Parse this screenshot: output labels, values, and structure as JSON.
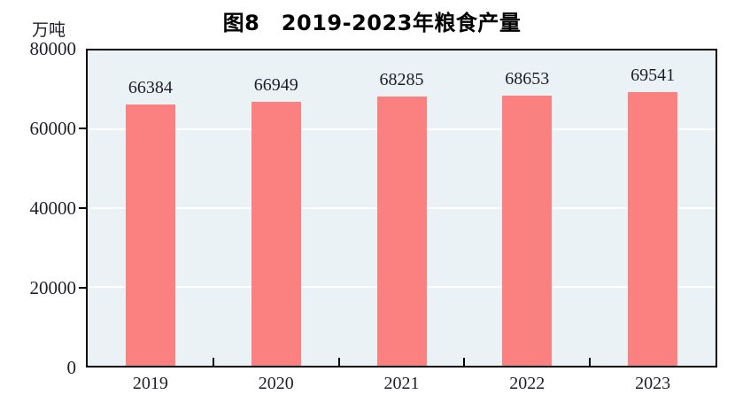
{
  "chart_data": {
    "type": "bar",
    "title": "图8　2019-2023年粮食产量",
    "unit_label": "万吨",
    "categories": [
      "2019",
      "2020",
      "2021",
      "2022",
      "2023"
    ],
    "values": [
      66384,
      66949,
      68285,
      68653,
      69541
    ],
    "value_labels": [
      "66384",
      "66949",
      "68285",
      "68653",
      "69541"
    ],
    "ylim": [
      0,
      80000
    ],
    "yticks": [
      0,
      20000,
      40000,
      60000,
      80000
    ],
    "ytick_labels": [
      "0",
      "20000",
      "40000",
      "60000",
      "80000"
    ],
    "grid": true,
    "legend_position": "none",
    "colors": {
      "bar": "#fb8181",
      "plot_background": "#ebf2f5",
      "gridline": "#ffffff",
      "axis": "#000000",
      "text": "#1e1e2a",
      "page_background": "#ffffff"
    }
  }
}
